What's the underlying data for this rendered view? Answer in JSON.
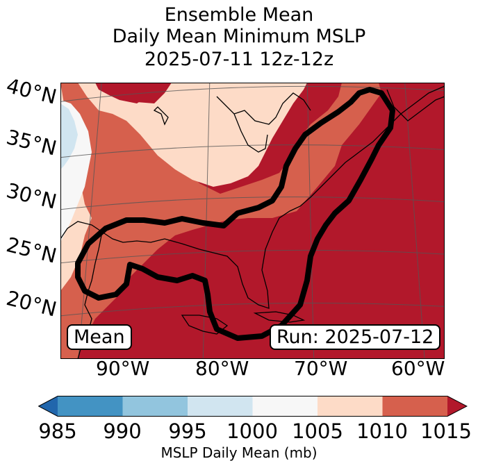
{
  "title": {
    "line1": "Ensemble Mean",
    "line2": "Daily Mean Minimum MSLP",
    "line3": "2025-07-11 12z-12z"
  },
  "map": {
    "lat_labels": [
      "40°N",
      "35°N",
      "30°N",
      "25°N",
      "20°N"
    ],
    "lon_labels": [
      "90°W",
      "80°W",
      "70°W",
      "60°W"
    ],
    "mean_label": "Mean",
    "run_label": "Run: 2025-07-12",
    "contour_color": "#000000"
  },
  "colorbar": {
    "label": "MSLP Daily Mean (mb)",
    "ticks": [
      "985",
      "990",
      "995",
      "1000",
      "1005",
      "1010",
      "1015"
    ],
    "colors": [
      "#2166ac",
      "#4393c3",
      "#92c5de",
      "#d1e5f0",
      "#f7f7f7",
      "#fddbc7",
      "#d6604d",
      "#b2182b"
    ],
    "extend": "both"
  }
}
